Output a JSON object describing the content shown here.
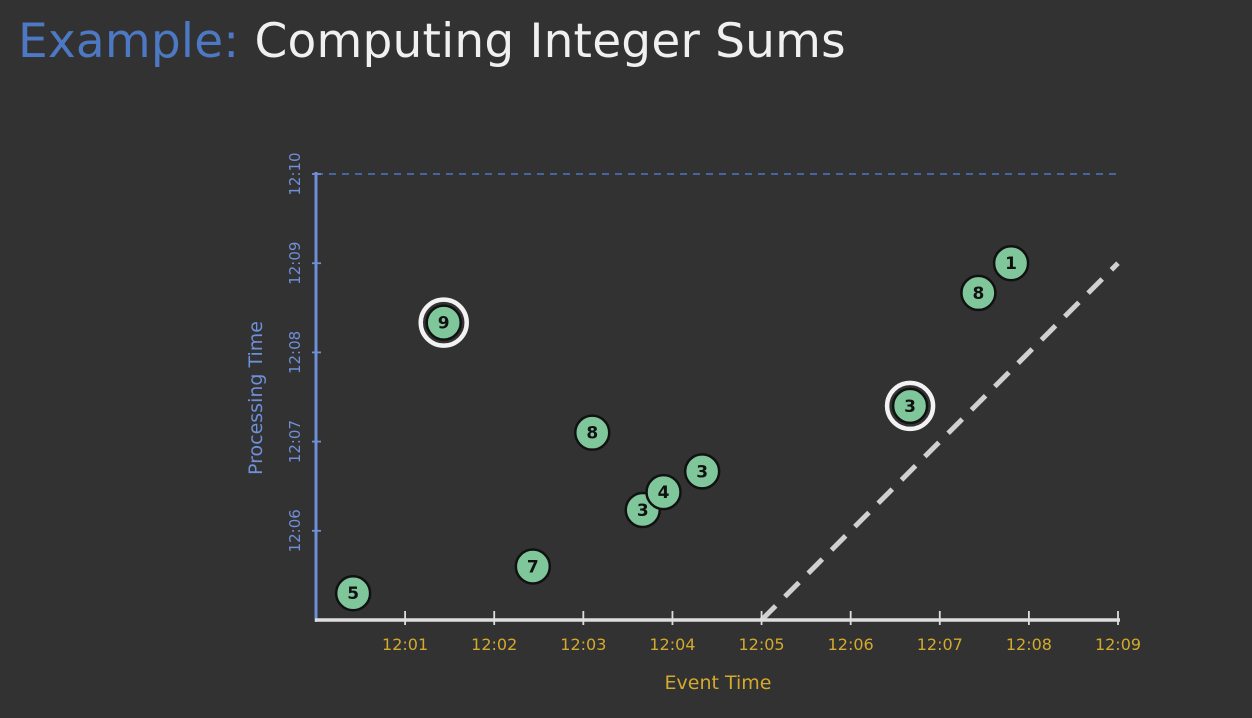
{
  "title": {
    "prefix": "Example:",
    "main": "Computing Integer Sums"
  },
  "colors": {
    "background": "#323232",
    "accent_blue": "#4d78c4",
    "axis_y": "#6f8fd8",
    "axis_x": "#dedede",
    "tick_text": "#d4aa2c",
    "point_fill": "#7fc79a",
    "point_stroke": "#111111",
    "highlight_ring": "#f2f2f2",
    "watermark_line": "#d0d0d0",
    "title_white": "#f0f0f0"
  },
  "chart_data": {
    "type": "scatter",
    "xlabel": "Event Time",
    "ylabel": "Processing Time",
    "x_ticks": [
      "12:01",
      "12:02",
      "12:03",
      "12:04",
      "12:05",
      "12:06",
      "12:07",
      "12:08",
      "12:09"
    ],
    "y_ticks": [
      "12:06",
      "12:07",
      "12:08",
      "12:09",
      "12:10"
    ],
    "xlim": [
      "12:00",
      "12:09"
    ],
    "ylim": [
      "12:05",
      "12:10"
    ],
    "grid": false,
    "points": [
      {
        "x": "12:00:25",
        "y": "12:05:18",
        "value": "5",
        "highlighted": false
      },
      {
        "x": "12:01:26",
        "y": "12:08:20",
        "value": "9",
        "highlighted": true
      },
      {
        "x": "12:02:26",
        "y": "12:05:36",
        "value": "7",
        "highlighted": false
      },
      {
        "x": "12:03:06",
        "y": "12:07:06",
        "value": "8",
        "highlighted": false
      },
      {
        "x": "12:03:40",
        "y": "12:06:14",
        "value": "3",
        "highlighted": false
      },
      {
        "x": "12:03:54",
        "y": "12:06:26",
        "value": "4",
        "highlighted": false
      },
      {
        "x": "12:04:20",
        "y": "12:06:40",
        "value": "3",
        "highlighted": false
      },
      {
        "x": "12:06:40",
        "y": "12:07:24",
        "value": "3",
        "highlighted": true
      },
      {
        "x": "12:07:26",
        "y": "12:08:40",
        "value": "8",
        "highlighted": false
      },
      {
        "x": "12:07:48",
        "y": "12:09:00",
        "value": "1",
        "highlighted": false
      }
    ],
    "watermark_line": {
      "from": [
        "12:05",
        "12:05"
      ],
      "to": [
        "12:09",
        "12:09"
      ],
      "style": "dashed"
    },
    "reference_line": {
      "y": "12:10",
      "style": "dashed"
    }
  }
}
